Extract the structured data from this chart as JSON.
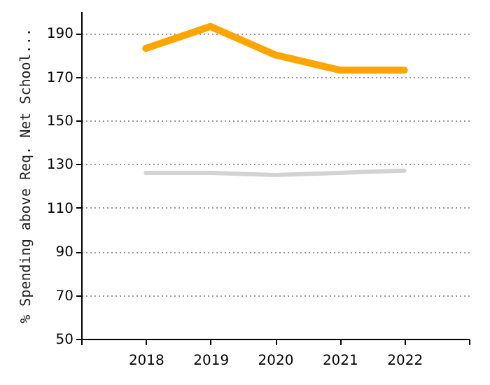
{
  "chart_data": {
    "type": "line",
    "ylabel": "% Spending above Req. Net School...",
    "x": [
      2018,
      2019,
      2020,
      2021,
      2022
    ],
    "series": [
      {
        "color": "#ffa500",
        "values": [
          183,
          193,
          180,
          173,
          173
        ]
      },
      {
        "color": "#d3d3d3",
        "values": [
          126,
          126,
          125,
          126,
          127
        ]
      }
    ],
    "xlim": [
      2017,
      2023
    ],
    "xticks": [
      {
        "value": 2017,
        "label": null
      },
      2018,
      2019,
      2020,
      2021,
      2022,
      {
        "value": 2023,
        "label": null
      }
    ],
    "ylim": [
      50,
      200
    ],
    "yticks": [
      50,
      70,
      90,
      110,
      130,
      150,
      170,
      190
    ],
    "grid": "y",
    "marker": "none",
    "line_style": "solid"
  }
}
